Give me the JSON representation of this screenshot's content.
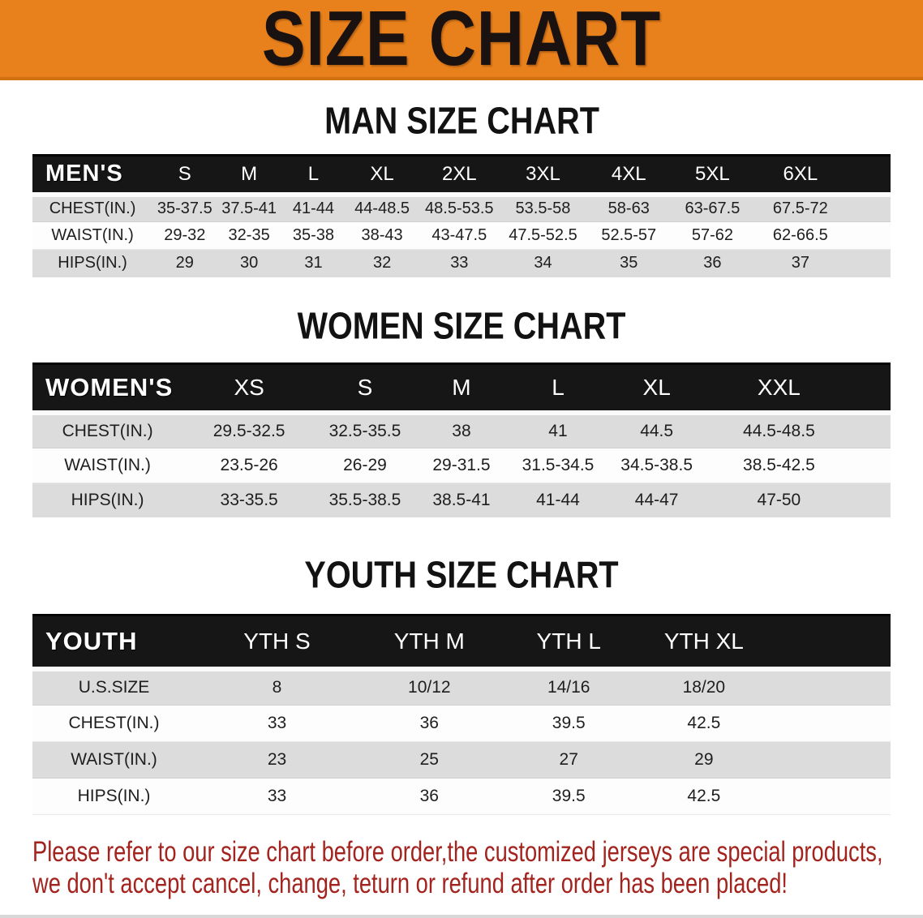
{
  "banner": {
    "title": "SIZE CHART"
  },
  "sections": [
    {
      "title": "MAN SIZE CHART",
      "table": {
        "header": [
          "MEN'S",
          "S",
          "M",
          "L",
          "XL",
          "2XL",
          "3XL",
          "4XL",
          "5XL",
          "6XL"
        ],
        "rows": [
          {
            "label": "CHEST(IN.)",
            "values": [
              "35-37.5",
              "37.5-41",
              "41-44",
              "44-48.5",
              "48.5-53.5",
              "53.5-58",
              "58-63",
              "63-67.5",
              "67.5-72"
            ]
          },
          {
            "label": "WAIST(IN.)",
            "values": [
              "29-32",
              "32-35",
              "35-38",
              "38-43",
              "43-47.5",
              "47.5-52.5",
              "52.5-57",
              "57-62",
              "62-66.5"
            ]
          },
          {
            "label": "HIPS(IN.)",
            "values": [
              "29",
              "30",
              "31",
              "32",
              "33",
              "34",
              "35",
              "36",
              "37"
            ]
          }
        ]
      }
    },
    {
      "title": "WOMEN SIZE CHART",
      "table": {
        "header": [
          "WOMEN'S",
          "XS",
          "S",
          "M",
          "L",
          "XL",
          "XXL"
        ],
        "rows": [
          {
            "label": "CHEST(IN.)",
            "values": [
              "29.5-32.5",
              "32.5-35.5",
              "38",
              "41",
              "44.5",
              "44.5-48.5"
            ]
          },
          {
            "label": "WAIST(IN.)",
            "values": [
              "23.5-26",
              "26-29",
              "29-31.5",
              "31.5-34.5",
              "34.5-38.5",
              "38.5-42.5"
            ]
          },
          {
            "label": "HIPS(IN.)",
            "values": [
              "33-35.5",
              "35.5-38.5",
              "38.5-41",
              "41-44",
              "44-47",
              "47-50"
            ]
          }
        ]
      }
    },
    {
      "title": "YOUTH SIZE CHART",
      "table": {
        "header": [
          "YOUTH",
          "YTH S",
          "YTH M",
          "YTH L",
          "YTH XL"
        ],
        "rows": [
          {
            "label": "U.S.SIZE",
            "values": [
              "8",
              "10/12",
              "14/16",
              "18/20"
            ]
          },
          {
            "label": "CHEST(IN.)",
            "values": [
              "33",
              "36",
              "39.5",
              "42.5"
            ]
          },
          {
            "label": "WAIST(IN.)",
            "values": [
              "23",
              "25",
              "27",
              "29"
            ]
          },
          {
            "label": "HIPS(IN.)",
            "values": [
              "33",
              "36",
              "39.5",
              "42.5"
            ]
          }
        ]
      }
    }
  ],
  "footer": {
    "line1": "Please refer to our size chart before order,the customized jerseys are special products,",
    "line2": "we don't accept cancel, change, teturn or refund after order has been placed!"
  },
  "colors": {
    "banner_bg": "#e8811c",
    "banner_text": "#191210",
    "table_header_bg": "#161616",
    "table_header_text": "#ffffff",
    "row_gray": "#dcdcdc",
    "row_white": "#fdfdfd",
    "footer_text": "#a3231e"
  }
}
